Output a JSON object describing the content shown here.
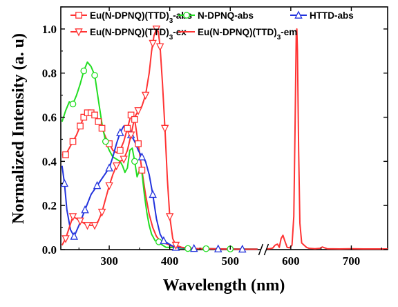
{
  "chart_data": {
    "type": "line",
    "xlabel": "Wavelength (nm)",
    "ylabel": "Normalized Intensity (a. u)",
    "x_axis_break": [
      550,
      560
    ],
    "xlim": [
      220,
      760
    ],
    "ylim": [
      0,
      1.1
    ],
    "xticks": [
      300,
      400,
      500,
      600,
      700
    ],
    "yticks": [
      0.0,
      0.2,
      0.4,
      0.6,
      0.8,
      1.0
    ],
    "grid": false,
    "legend_position": "top",
    "series": [
      {
        "name": "Eu(N-DPNQ)(TTD)3-abs",
        "name_base": "Eu(N-DPNQ)(TTD)",
        "name_sub": "3",
        "name_suffix": "-abs",
        "color": "#ff3333",
        "marker": "square",
        "x": [
          222,
          228,
          234,
          240,
          246,
          252,
          258,
          264,
          270,
          276,
          282,
          288,
          294,
          300,
          306,
          312,
          318,
          324,
          330,
          336,
          342,
          348,
          354,
          360,
          366,
          372,
          378,
          384,
          390,
          396,
          400,
          404,
          410,
          420,
          440,
          480,
          520,
          545
        ],
        "y": [
          0.43,
          0.43,
          0.46,
          0.49,
          0.52,
          0.56,
          0.6,
          0.62,
          0.62,
          0.61,
          0.58,
          0.55,
          0.51,
          0.48,
          0.45,
          0.44,
          0.45,
          0.49,
          0.55,
          0.61,
          0.59,
          0.48,
          0.36,
          0.25,
          0.16,
          0.1,
          0.06,
          0.04,
          0.03,
          0.025,
          0.02,
          0.015,
          0.01,
          0.008,
          0.005,
          0.003,
          0.002,
          0.002
        ],
        "marker_x": [
          228,
          240,
          252,
          258,
          264,
          270,
          276,
          282,
          288,
          300,
          318,
          330,
          336,
          342,
          348,
          354
        ]
      },
      {
        "name": "N-DPNQ-abs",
        "color": "#22dd22",
        "marker": "circle",
        "x": [
          222,
          228,
          234,
          240,
          246,
          252,
          258,
          264,
          270,
          276,
          282,
          288,
          294,
          300,
          306,
          312,
          318,
          322,
          326,
          330,
          334,
          338,
          342,
          346,
          350,
          354,
          358,
          362,
          366,
          370,
          376,
          382,
          388,
          394,
          400,
          410,
          430,
          460,
          500,
          545
        ],
        "y": [
          0.58,
          0.63,
          0.67,
          0.66,
          0.7,
          0.75,
          0.81,
          0.85,
          0.83,
          0.79,
          0.68,
          0.57,
          0.49,
          0.45,
          0.42,
          0.41,
          0.4,
          0.38,
          0.35,
          0.37,
          0.45,
          0.46,
          0.4,
          0.33,
          0.36,
          0.35,
          0.25,
          0.17,
          0.11,
          0.07,
          0.04,
          0.035,
          0.02,
          0.01,
          0.01,
          0.008,
          0.005,
          0.004,
          0.003,
          0.002
        ],
        "marker_x": [
          240,
          258,
          276,
          294,
          342,
          382,
          430,
          460,
          500
        ]
      },
      {
        "name": "HTTD-abs",
        "color": "#2233dd",
        "marker": "triangle-up",
        "x": [
          222,
          226,
          230,
          236,
          242,
          250,
          260,
          270,
          280,
          290,
          300,
          306,
          312,
          318,
          324,
          330,
          336,
          342,
          348,
          354,
          360,
          366,
          372,
          378,
          384,
          390,
          396,
          402,
          410,
          420,
          440,
          480,
          520,
          545
        ],
        "y": [
          0.38,
          0.3,
          0.18,
          0.09,
          0.06,
          0.11,
          0.18,
          0.25,
          0.29,
          0.33,
          0.37,
          0.42,
          0.48,
          0.53,
          0.56,
          0.55,
          0.52,
          0.49,
          0.45,
          0.42,
          0.4,
          0.34,
          0.25,
          0.14,
          0.07,
          0.04,
          0.03,
          0.02,
          0.01,
          0.008,
          0.005,
          0.003,
          0.002,
          0.002
        ],
        "marker_x": [
          226,
          242,
          260,
          280,
          300,
          318,
          336,
          354,
          372,
          390,
          410,
          440,
          480,
          520
        ]
      },
      {
        "name": "Eu(N-DPNQ)(TTD)3-ex",
        "name_base": "Eu(N-DPNQ)(TTD)",
        "name_sub": "3",
        "name_suffix": "-ex",
        "color": "#ff3333",
        "marker": "triangle-down",
        "x": [
          222,
          228,
          234,
          240,
          246,
          252,
          258,
          264,
          270,
          276,
          282,
          288,
          294,
          300,
          306,
          312,
          318,
          324,
          330,
          336,
          342,
          348,
          354,
          360,
          366,
          370,
          374,
          378,
          381,
          384,
          388,
          392,
          396,
          400,
          405,
          410,
          420,
          440,
          480,
          520,
          545
        ],
        "y": [
          0.02,
          0.05,
          0.1,
          0.15,
          0.14,
          0.13,
          0.12,
          0.11,
          0.11,
          0.11,
          0.13,
          0.17,
          0.23,
          0.29,
          0.34,
          0.38,
          0.4,
          0.41,
          0.45,
          0.52,
          0.6,
          0.63,
          0.65,
          0.7,
          0.8,
          0.9,
          0.97,
          1.0,
          0.99,
          0.92,
          0.75,
          0.55,
          0.32,
          0.15,
          0.05,
          0.02,
          0.01,
          0.005,
          0.003,
          0.002,
          0.002
        ],
        "marker_x": [
          228,
          240,
          252,
          264,
          276,
          288,
          300,
          312,
          324,
          336,
          348,
          360,
          372,
          378,
          384,
          392,
          400,
          410
        ]
      },
      {
        "name": "Eu(N-DPNQ)(TTD)3-em",
        "name_base": "Eu(N-DPNQ)(TTD)",
        "name_sub": "3",
        "name_suffix": "-em",
        "color": "#ff3333",
        "marker": "none",
        "x": [
          560,
          565,
          570,
          574,
          578,
          581,
          584,
          587,
          590,
          594,
          598,
          602,
          605,
          607,
          609,
          610,
          611,
          613,
          615,
          618,
          622,
          626,
          630,
          640,
          648,
          652,
          660,
          680,
          700,
          720,
          740,
          760
        ],
        "y": [
          0.003,
          0.004,
          0.007,
          0.02,
          0.025,
          0.01,
          0.05,
          0.065,
          0.04,
          0.01,
          0.008,
          0.02,
          0.15,
          0.55,
          0.97,
          1.0,
          0.9,
          0.45,
          0.12,
          0.03,
          0.02,
          0.01,
          0.006,
          0.004,
          0.006,
          0.012,
          0.004,
          0.003,
          0.004,
          0.003,
          0.003,
          0.003
        ]
      }
    ]
  }
}
